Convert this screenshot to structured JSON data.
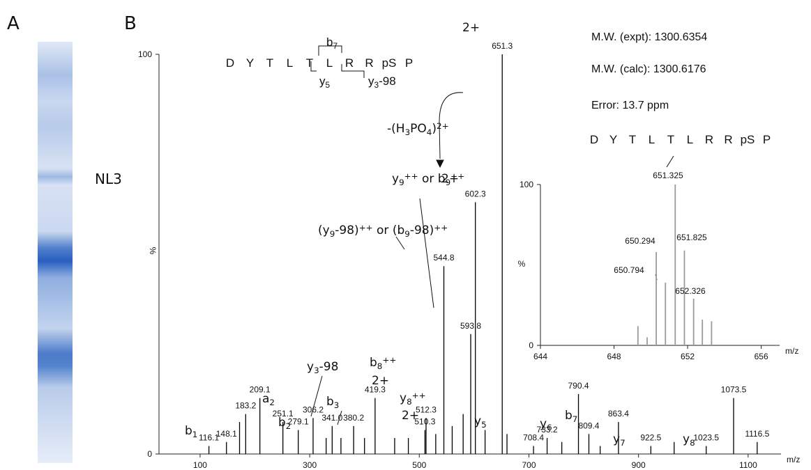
{
  "panels": {
    "a": "A",
    "b": "B"
  },
  "gel": {
    "label": "NL3"
  },
  "info": {
    "lines": [
      "M.W. (expt): 1300.6354",
      "M.W. (calc): 1300.6176",
      "Error: 13.7 ppm"
    ],
    "sequence": [
      "D",
      "Y",
      "T",
      "L",
      "T",
      "L",
      "R",
      "R",
      "pS",
      "P"
    ]
  },
  "peptide": {
    "sequence": [
      "D",
      "Y",
      "T",
      "L",
      "T",
      "L",
      "R",
      "R",
      "pS",
      "P"
    ],
    "fragments": [
      [
        {
          "text": "b"
        },
        {
          "sub": "7"
        }
      ],
      [
        {
          "text": "y"
        },
        {
          "sub": "5"
        }
      ],
      [
        {
          "text": "y"
        },
        {
          "sub": "3"
        },
        {
          "text": "-98"
        }
      ]
    ]
  },
  "chart_data": [
    {
      "type": "spectrum",
      "color": "#000000",
      "x_label": "m/z",
      "y_label": "%",
      "xlim": [
        25,
        1160
      ],
      "xticks": [
        100,
        300,
        500,
        700,
        900,
        1100
      ],
      "ylim": [
        0,
        100
      ],
      "yticks": [
        0,
        100
      ],
      "x": [
        116.1,
        148.1,
        172,
        183.2,
        209.1,
        251.1,
        279.1,
        306.2,
        330,
        341.0,
        357,
        380.2,
        400,
        419.3,
        455,
        480,
        510.3,
        512.3,
        530,
        544.8,
        560,
        580,
        593.8,
        602.3,
        620,
        651.3,
        660,
        708.4,
        733.2,
        760,
        790.4,
        809.4,
        830,
        863.4,
        922.5,
        965,
        1023.5,
        1073.5,
        1116.5
      ],
      "values": [
        2,
        3,
        8,
        10,
        14,
        8,
        6,
        9,
        4,
        7,
        4,
        7,
        4,
        14,
        4,
        4,
        6,
        9,
        5,
        47,
        7,
        10,
        30,
        63,
        6,
        100,
        5,
        2,
        4,
        3,
        15,
        5,
        2,
        8,
        2,
        3,
        2,
        14,
        3
      ],
      "x_labels": [
        "116.1",
        "148.1",
        null,
        "183.2",
        "209.1",
        "251.1",
        "279.1",
        "306.2",
        null,
        "341.0",
        null,
        "380.2",
        null,
        "419.3",
        null,
        null,
        "510.3",
        "512.3",
        null,
        "544.8",
        null,
        null,
        "593.8",
        "602.3",
        null,
        "651.3",
        null,
        "708.4",
        "733.2",
        null,
        "790.4",
        "809.4",
        null,
        "863.4",
        "922.5",
        null,
        "1023.5",
        "1073.5",
        "1116.5"
      ],
      "annotations": [
        [
          {
            "text": "2+"
          }
        ],
        [
          {
            "text": "-(H"
          },
          {
            "sub": "3"
          },
          {
            "text": "PO"
          },
          {
            "sub": "4"
          },
          {
            "text": ")"
          },
          {
            "sup": "2+"
          }
        ],
        [
          {
            "text": "y"
          },
          {
            "sub": "9"
          },
          {
            "sup": "++"
          },
          {
            "text": " or b"
          },
          {
            "sub": "9"
          },
          {
            "sup": "++"
          }
        ],
        [
          {
            "text": "2+"
          }
        ],
        [
          {
            "text": "(y"
          },
          {
            "sub": "9"
          },
          {
            "text": "-98)"
          },
          {
            "sup": "++"
          },
          {
            "text": " or (b"
          },
          {
            "sub": "9"
          },
          {
            "text": "-98)"
          },
          {
            "sup": "++"
          }
        ],
        [
          {
            "text": "y"
          },
          {
            "sub": "3"
          },
          {
            "text": "-98"
          }
        ],
        [
          {
            "text": "b"
          },
          {
            "sub": "8"
          },
          {
            "sup": "++"
          }
        ],
        [
          {
            "text": "2+"
          }
        ],
        [
          {
            "text": "y"
          },
          {
            "sub": "8"
          },
          {
            "sup": "++"
          }
        ],
        [
          {
            "text": "2+"
          }
        ],
        [
          {
            "text": "a"
          },
          {
            "sub": "2"
          }
        ],
        [
          {
            "text": "b"
          },
          {
            "sub": "1"
          }
        ],
        [
          {
            "text": "b"
          },
          {
            "sub": "2"
          }
        ],
        [
          {
            "text": "b"
          },
          {
            "sub": "3"
          }
        ],
        [
          {
            "text": "y"
          },
          {
            "sub": "5"
          }
        ],
        [
          {
            "text": "y"
          },
          {
            "sub": "6"
          }
        ],
        [
          {
            "text": "b"
          },
          {
            "sub": "7"
          }
        ],
        [
          {
            "text": "y"
          },
          {
            "sub": "7"
          }
        ],
        [
          {
            "text": "y"
          },
          {
            "sub": "8"
          }
        ]
      ]
    },
    {
      "type": "spectrum",
      "color": "#9a9a9a",
      "x_label": "m/z",
      "y_label": "%",
      "xlim": [
        644,
        657
      ],
      "xticks": [
        644,
        648,
        652,
        656
      ],
      "ylim": [
        0,
        100
      ],
      "yticks": [
        0,
        100
      ],
      "x": [
        649.3,
        649.8,
        650.294,
        650.794,
        651.325,
        651.825,
        652.326,
        652.8,
        653.3
      ],
      "values": [
        12,
        5,
        58,
        39,
        100,
        59,
        29,
        16,
        15
      ],
      "x_labels": [
        null,
        null,
        "650.294",
        "650.794",
        "651.325",
        "651.825",
        "652.326",
        null,
        null
      ]
    }
  ]
}
